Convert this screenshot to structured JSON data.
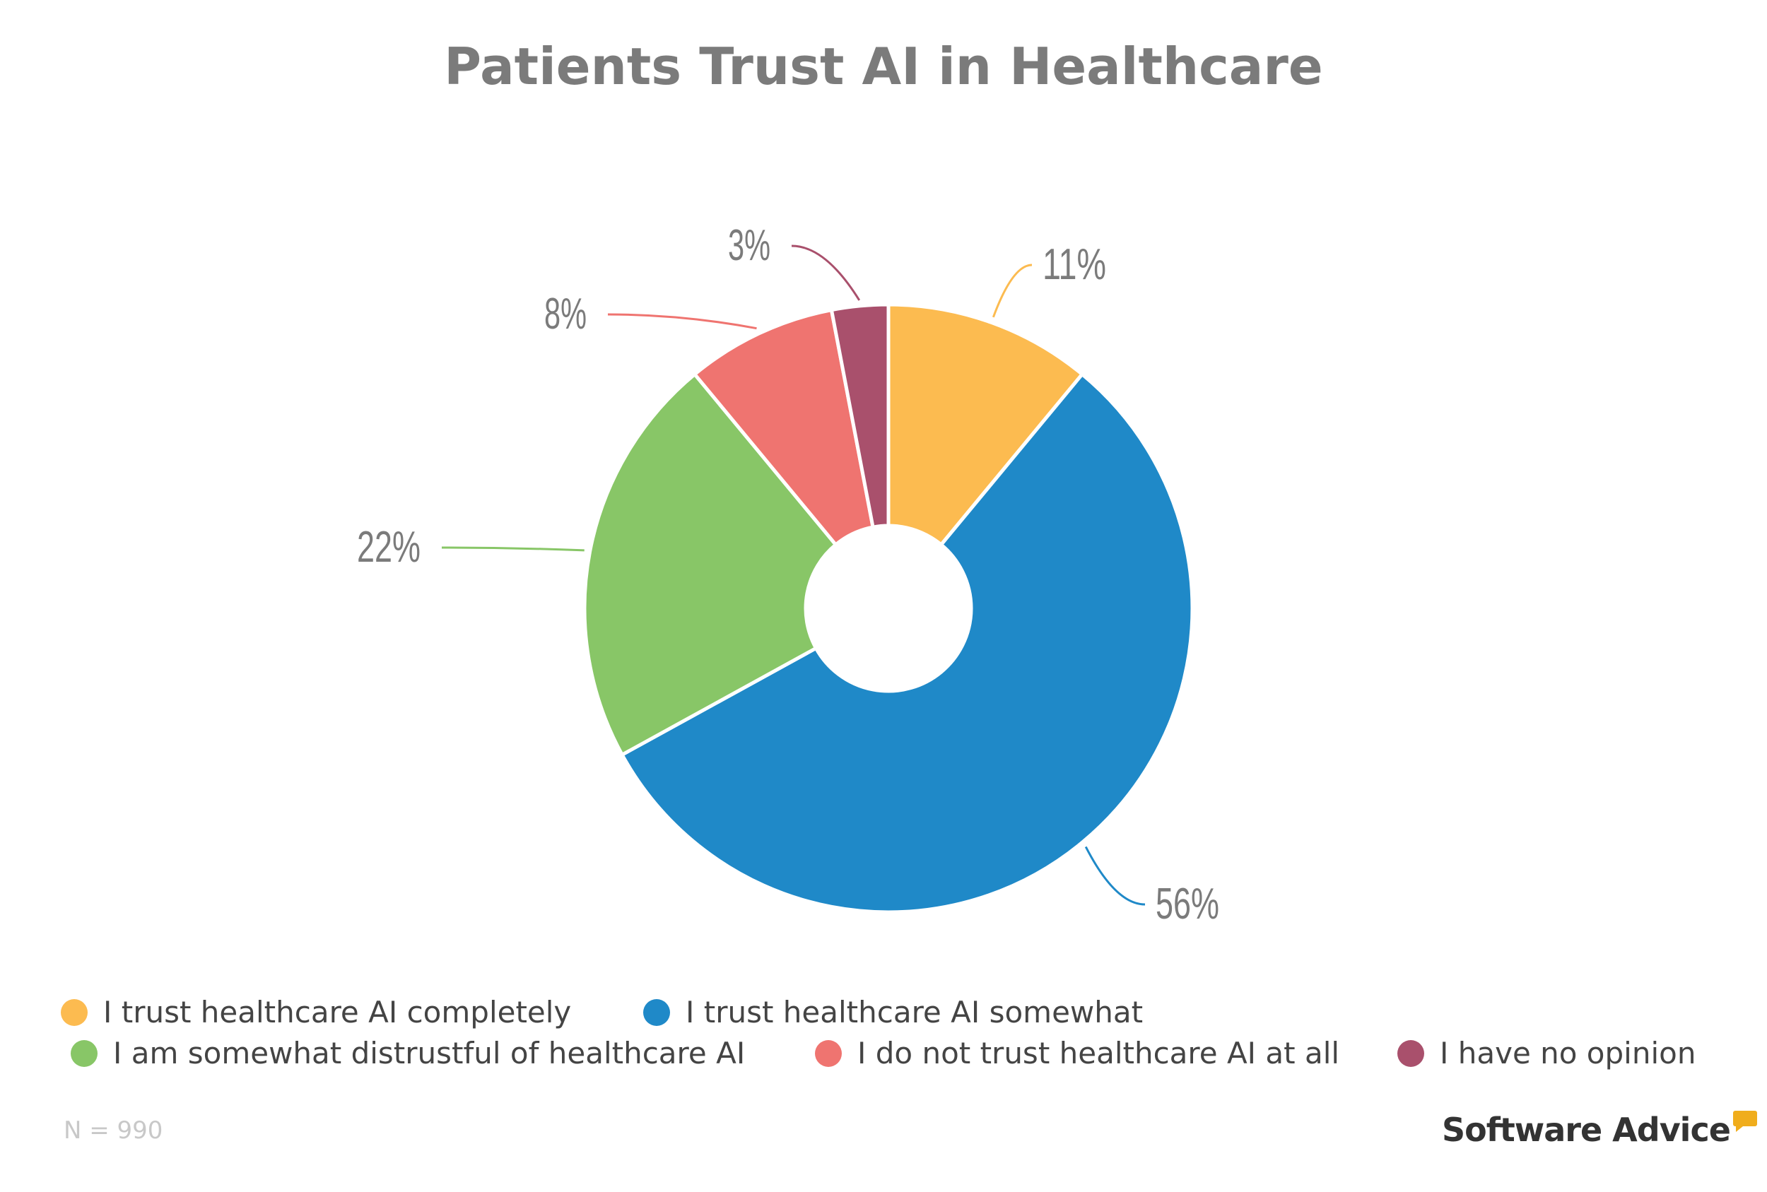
{
  "chart_data": {
    "type": "pie",
    "donut": true,
    "title": "Patients Trust AI in Healthcare",
    "categories": [
      "I trust healthcare AI completely",
      "I trust healthcare AI somewhat",
      "I am somewhat distrustful of healthcare AI",
      "I do not trust healthcare AI at all",
      "I have no opinion"
    ],
    "values": [
      11,
      56,
      22,
      8,
      3
    ],
    "labels": [
      "11%",
      "56%",
      "22%",
      "8%",
      "3%"
    ],
    "colors": [
      "#fcbb50",
      "#1f89c8",
      "#88c667",
      "#ef7470",
      "#a9506c"
    ],
    "legend_position": "bottom"
  },
  "footnote": "N = 990",
  "logo": "Software Advice"
}
